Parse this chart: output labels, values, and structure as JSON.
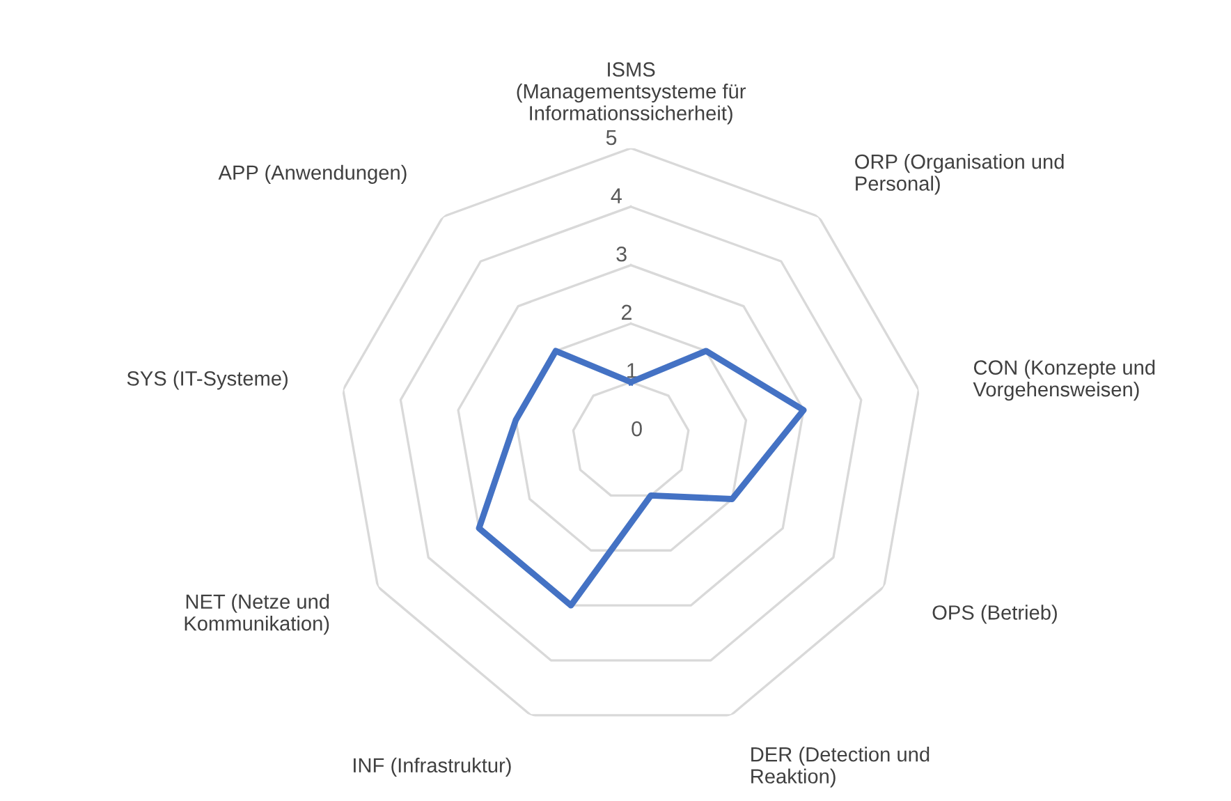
{
  "chart_data": {
    "type": "radar",
    "categories": [
      "ISMS\n(Managementsysteme für\nInformationssicherheit)",
      "ORP (Organisation und\nPersonal)",
      "CON (Konzepte und\nVorgehensweisen)",
      "OPS (Betrieb)",
      "DER (Detection und\nReaktion)",
      "INF (Infrastruktur)",
      "NET (Netze und\nKommunikation)",
      "SYS (IT-Systeme)",
      "APP (Anwendungen)"
    ],
    "series": [
      {
        "color": "#4472c4",
        "values": [
          1,
          2,
          3,
          2,
          1,
          3,
          3,
          2,
          2
        ]
      }
    ],
    "ylim": [
      0,
      5
    ],
    "yticks": [
      0,
      1,
      2,
      3,
      4,
      5
    ],
    "grid": true,
    "marker": "none",
    "line_style": "solid",
    "legend": false
  }
}
